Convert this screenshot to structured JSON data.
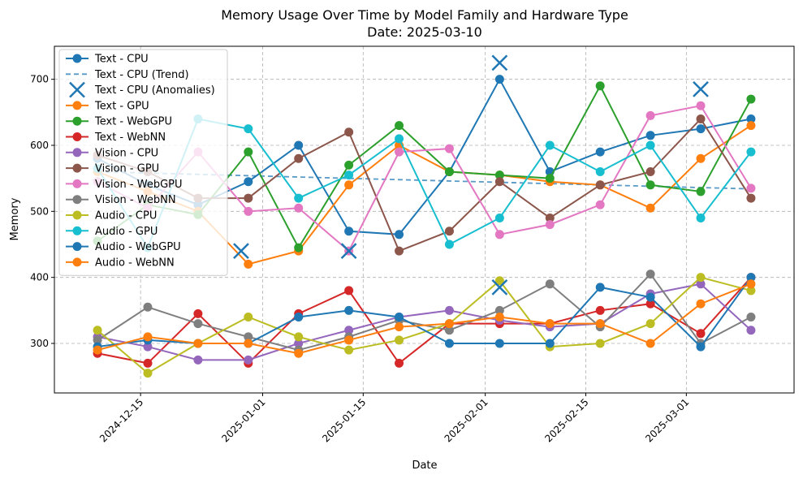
{
  "chart_data": {
    "type": "line",
    "title": "Memory Usage Over Time by Model Family and Hardware Type",
    "subtitle": "Date: 2025-03-10",
    "xlabel": "Date",
    "ylabel": "Memory",
    "xlim": [
      "2024-12-03",
      "2025-03-16"
    ],
    "ylim": [
      225,
      750
    ],
    "x_ticks": [
      "2024-12-15",
      "2025-01-01",
      "2025-01-15",
      "2025-02-01",
      "2025-02-15",
      "2025-03-01"
    ],
    "y_ticks": [
      300,
      400,
      500,
      600,
      700
    ],
    "grid": true,
    "legend_position": "top-left",
    "x_dates": [
      "2024-12-09",
      "2024-12-16",
      "2024-12-23",
      "2024-12-30",
      "2025-01-06",
      "2025-01-13",
      "2025-01-20",
      "2025-01-27",
      "2025-02-03",
      "2025-02-10",
      "2025-02-17",
      "2025-02-24",
      "2025-03-03",
      "2025-03-10"
    ],
    "series": [
      {
        "name": "Text - CPU",
        "color": "#1f77b4",
        "values": [
          580,
          540,
          510,
          545,
          600,
          470,
          465,
          560,
          700,
          560,
          590,
          615,
          625,
          640
        ]
      },
      {
        "name": "Text - GPU",
        "color": "#ff7f0e",
        "values": [
          560,
          530,
          500,
          420,
          440,
          540,
          600,
          560,
          555,
          545,
          540,
          505,
          580,
          630
        ]
      },
      {
        "name": "Text - WebGPU",
        "color": "#2ca02c",
        "values": [
          455,
          510,
          495,
          590,
          445,
          570,
          630,
          560,
          555,
          550,
          690,
          540,
          530,
          670
        ]
      },
      {
        "name": "Text - WebNN",
        "color": "#d62728",
        "values": [
          285,
          270,
          345,
          270,
          345,
          380,
          270,
          330,
          330,
          330,
          350,
          360,
          315,
          400
        ]
      },
      {
        "name": "Vision - CPU",
        "color": "#9467bd",
        "values": [
          310,
          295,
          275,
          275,
          300,
          320,
          340,
          350,
          335,
          325,
          330,
          375,
          390,
          320
        ]
      },
      {
        "name": "Vision - GPU",
        "color": "#8c564b",
        "values": [
          585,
          560,
          520,
          520,
          580,
          620,
          440,
          470,
          545,
          490,
          540,
          560,
          640,
          520
        ]
      },
      {
        "name": "Vision - WebGPU",
        "color": "#e377c2",
        "values": [
          545,
          505,
          590,
          500,
          505,
          440,
          590,
          595,
          465,
          480,
          510,
          645,
          660,
          535
        ]
      },
      {
        "name": "Vision - WebNN",
        "color": "#7f7f7f",
        "values": [
          305,
          355,
          330,
          310,
          290,
          310,
          335,
          320,
          350,
          390,
          325,
          405,
          300,
          340
        ]
      },
      {
        "name": "Audio - CPU",
        "color": "#bcbd22",
        "values": [
          320,
          255,
          300,
          340,
          310,
          290,
          305,
          330,
          395,
          295,
          300,
          330,
          400,
          380
        ]
      },
      {
        "name": "Audio - GPU",
        "color": "#17becf",
        "values": [
          565,
          445,
          640,
          625,
          520,
          555,
          610,
          450,
          490,
          600,
          560,
          600,
          490,
          590
        ]
      },
      {
        "name": "Audio - WebGPU",
        "color": "#1f77b4",
        "values": [
          295,
          305,
          300,
          300,
          340,
          350,
          340,
          300,
          300,
          300,
          385,
          370,
          295,
          400
        ]
      },
      {
        "name": "Audio - WebNN",
        "color": "#ff7f0e",
        "values": [
          290,
          310,
          300,
          300,
          285,
          305,
          325,
          330,
          340,
          330,
          330,
          300,
          360,
          390
        ]
      }
    ],
    "trend": {
      "series": "Text - CPU (Trend)",
      "color": "#1f77b4",
      "values": [
        560,
        558,
        556,
        554,
        552,
        550,
        548,
        546,
        544,
        542,
        540,
        538,
        536,
        534
      ]
    },
    "anomalies": {
      "series": "Text - CPU (Anomalies)",
      "color": "#1f77b4",
      "points": [
        {
          "x": "2024-12-29",
          "y": 440
        },
        {
          "x": "2025-01-13",
          "y": 440
        },
        {
          "x": "2025-02-03",
          "y": 725
        },
        {
          "x": "2025-02-03",
          "y": 385
        },
        {
          "x": "2025-03-03",
          "y": 685
        }
      ]
    }
  },
  "legend": [
    {
      "label": "Text - CPU",
      "kind": "line",
      "color": "#1f77b4"
    },
    {
      "label": "Text - CPU (Trend)",
      "kind": "dash",
      "color": "#1f77b4"
    },
    {
      "label": "Text - CPU (Anomalies)",
      "kind": "x",
      "color": "#1f77b4"
    },
    {
      "label": "Text - GPU",
      "kind": "line",
      "color": "#ff7f0e"
    },
    {
      "label": "Text - WebGPU",
      "kind": "line",
      "color": "#2ca02c"
    },
    {
      "label": "Text - WebNN",
      "kind": "line",
      "color": "#d62728"
    },
    {
      "label": "Vision - CPU",
      "kind": "line",
      "color": "#9467bd"
    },
    {
      "label": "Vision - GPU",
      "kind": "line",
      "color": "#8c564b"
    },
    {
      "label": "Vision - WebGPU",
      "kind": "line",
      "color": "#e377c2"
    },
    {
      "label": "Vision - WebNN",
      "kind": "line",
      "color": "#7f7f7f"
    },
    {
      "label": "Audio - CPU",
      "kind": "line",
      "color": "#bcbd22"
    },
    {
      "label": "Audio - GPU",
      "kind": "line",
      "color": "#17becf"
    },
    {
      "label": "Audio - WebGPU",
      "kind": "line",
      "color": "#1f77b4"
    },
    {
      "label": "Audio - WebNN",
      "kind": "line",
      "color": "#ff7f0e"
    }
  ]
}
